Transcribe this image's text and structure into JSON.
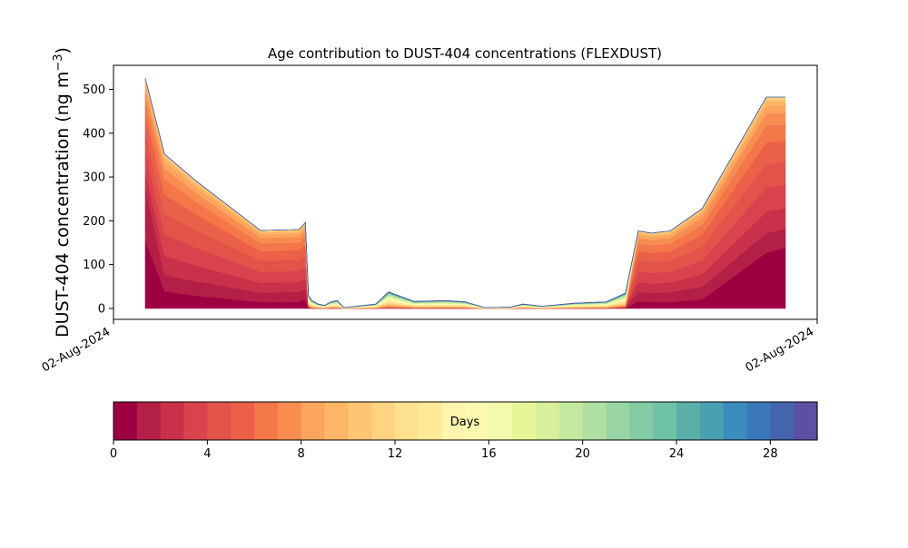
{
  "chart_data": {
    "type": "area",
    "subtype": "stacked",
    "title": "Age contribution to DUST-404 concentrations (FLEXDUST)",
    "ylabel_main": "DUST-404 concentration (ng m",
    "ylabel_sup": "−3",
    "ylabel_end": ")",
    "xlabel": "",
    "x_tick_labels": [
      "02-Aug-2024",
      "02-Aug-2024"
    ],
    "ylim": [
      -25,
      555
    ],
    "y_ticks": [
      0,
      100,
      200,
      300,
      400,
      500
    ],
    "grid": false,
    "x": [
      0.0,
      0.03,
      0.08,
      0.18,
      0.24,
      0.25,
      0.255,
      0.26,
      0.27,
      0.28,
      0.29,
      0.3,
      0.31,
      0.33,
      0.36,
      0.38,
      0.42,
      0.47,
      0.5,
      0.53,
      0.57,
      0.59,
      0.62,
      0.67,
      0.72,
      0.75,
      0.77,
      0.79,
      0.82,
      0.87,
      0.97,
      1.0
    ],
    "total_concentration": [
      525,
      352,
      290,
      178,
      180,
      196,
      30,
      18,
      10,
      7,
      15,
      18,
      2,
      5,
      10,
      38,
      16,
      18,
      15,
      2,
      3,
      10,
      5,
      12,
      15,
      35,
      177,
      172,
      177,
      228,
      482,
      482
    ],
    "age_profiles": [
      {
        "weights": [
          1.0,
          0.1,
          0.07,
          0.02,
          0.03,
          0.1,
          0.0,
          0.0,
          0.0,
          0.0,
          0.0,
          0.0,
          0.0,
          0.0,
          0.0,
          0.0,
          0.0,
          0.0,
          0.0,
          0.0,
          0.0,
          0.0,
          0.0,
          0.0,
          0.02,
          0.05,
          0.06,
          0.03,
          0.03,
          0.05,
          0.6,
          0.7
        ]
      },
      {
        "weights": [
          1.0,
          0.02,
          0.05,
          0.08,
          0.1,
          0.06,
          0.45,
          0.0,
          0.0,
          0.0,
          0.0,
          0.0,
          0.0,
          0.0,
          0.0,
          0.0,
          0.0,
          0.0,
          0.0,
          0.0,
          0.0,
          0.0,
          0.0,
          0.0,
          0.0,
          0.3,
          0.08,
          0.08,
          0.1,
          0.11,
          0.05,
          0.05
        ]
      }
    ],
    "colorbar": {
      "label": "Days",
      "range": [
        0,
        30
      ],
      "ticks": [
        0,
        4,
        8,
        12,
        16,
        20,
        24,
        28
      ],
      "colors": [
        "#9e0142",
        "#b41f47",
        "#c9314a",
        "#d8434d",
        "#e2534a",
        "#ea6049",
        "#f4774a",
        "#f88d52",
        "#fba55e",
        "#fdb666",
        "#fdc574",
        "#fed382",
        "#fee18e",
        "#fee999",
        "#fef5ad",
        "#fbf8b0",
        "#f2faae",
        "#e6f598",
        "#d9ef9b",
        "#c5e8a0",
        "#b0dfa2",
        "#99d5a4",
        "#83cba5",
        "#6fc2a6",
        "#5aafa8",
        "#49a0b1",
        "#3b8bbd",
        "#3a78b9",
        "#4465ad",
        "#5e4fa2"
      ]
    }
  }
}
